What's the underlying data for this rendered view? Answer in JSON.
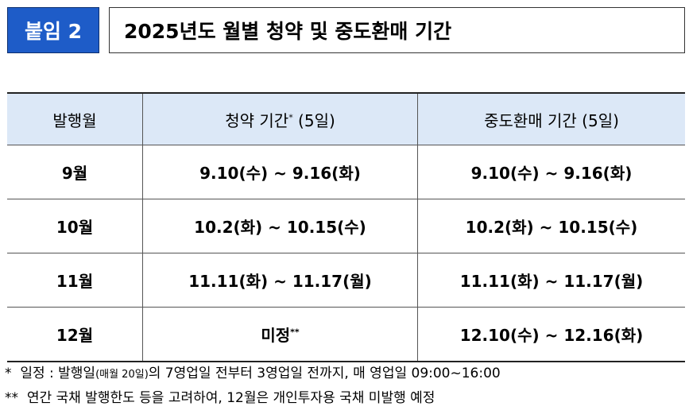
{
  "header": {
    "badge": "붙임 2",
    "title": "2025년도 월별 청약 및 중도환매 기간"
  },
  "table": {
    "columns": [
      {
        "text": "발행월"
      },
      {
        "text": "청약 기간",
        "mark": "*",
        "suffix": "(5일)"
      },
      {
        "text": "중도환매 기간 (5일)"
      }
    ],
    "rows": [
      [
        {
          "text": "9월"
        },
        {
          "text": "9.10(수) ~ 9.16(화)"
        },
        {
          "text": "9.10(수) ~ 9.16(화)"
        }
      ],
      [
        {
          "text": "10월"
        },
        {
          "text": "10.2(화) ~ 10.15(수)"
        },
        {
          "text": "10.2(화) ~ 10.15(수)"
        }
      ],
      [
        {
          "text": "11월"
        },
        {
          "text": "11.11(화) ~ 11.17(월)"
        },
        {
          "text": "11.11(화) ~ 11.17(월)"
        }
      ],
      [
        {
          "text": "12월"
        },
        {
          "text": "미정",
          "mark": "**"
        },
        {
          "text": "12.10(수) ~ 12.16(화)"
        }
      ]
    ]
  },
  "notes": [
    {
      "mark": "*",
      "text": "일정 : 발행일",
      "small": "(매월 20일)",
      "rest": "의 7영업일 전부터 3영업일 전까지, 매 영업일 09:00~16:00"
    },
    {
      "mark": "**",
      "text": "연간 국채 발행한도 등을 고려하여, 12월은 개인투자용 국채 미발행 예정"
    }
  ]
}
